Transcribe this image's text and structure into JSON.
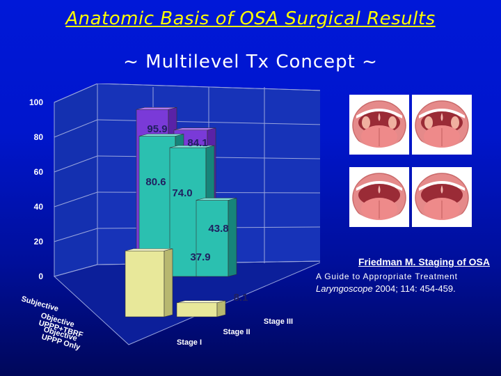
{
  "slide": {
    "title": "Anatomic Basis of OSA Surgical Results",
    "subtitle": "~ Multilevel Tx Concept ~"
  },
  "chart_data": {
    "type": "bar",
    "categories": [
      "Stage I",
      "Stage II",
      "Stage III"
    ],
    "series": [
      {
        "name": "Subjective",
        "values": [
          95.9,
          84.1,
          null
        ]
      },
      {
        "name": "Objective UPPP+TBRF",
        "values": [
          80.6,
          74.0,
          43.8
        ]
      },
      {
        "name": "Objective UPPP Only",
        "values": [
          37.9,
          8.1,
          null
        ]
      }
    ],
    "data_labels": [
      "95.9",
      "84.1",
      "80.6",
      "74.0",
      "43.8",
      "37.9",
      "8.1"
    ],
    "y_ticks": [
      "100",
      "80",
      "60",
      "40",
      "20",
      "0"
    ],
    "ylim": [
      0,
      100
    ],
    "series_colors": [
      "#8a2be2",
      "#20c8b8",
      "#eeee99"
    ],
    "grid": true
  },
  "images": [
    {
      "name": "mouth-image-1",
      "icon": "open-mouth-icon"
    },
    {
      "name": "mouth-image-2",
      "icon": "open-mouth-icon"
    },
    {
      "name": "mouth-image-3",
      "icon": "open-mouth-icon"
    },
    {
      "name": "mouth-image-4",
      "icon": "open-mouth-icon"
    }
  ],
  "citation": {
    "author": "Friedman M.  Staging of OSA",
    "subtitle": "A Guide to Appropriate Treatment",
    "journal": "Laryngoscope",
    "reference": " 2004; 114: 454-459."
  }
}
